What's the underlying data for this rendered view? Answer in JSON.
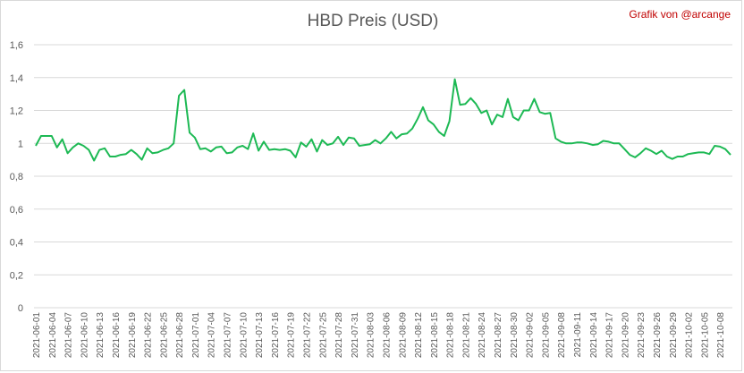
{
  "credit": "Grafik von @arcange",
  "chart_data": {
    "type": "line",
    "title": "HBD Preis (USD)",
    "xlabel": "",
    "ylabel": "",
    "ylim": [
      0,
      1.6
    ],
    "y_ticks": [
      "0",
      "0,2",
      "0,4",
      "0,6",
      "0,8",
      "1",
      "1,2",
      "1,4",
      "1,6"
    ],
    "grid": true,
    "legend": "none",
    "line_color": "#1db954",
    "x_tick_labels": [
      "2021-06-01",
      "2021-06-04",
      "2021-06-07",
      "2021-06-10",
      "2021-06-13",
      "2021-06-16",
      "2021-06-19",
      "2021-06-22",
      "2021-06-25",
      "2021-06-28",
      "2021-07-01",
      "2021-07-04",
      "2021-07-07",
      "2021-07-10",
      "2021-07-13",
      "2021-07-16",
      "2021-07-19",
      "2021-07-22",
      "2021-07-25",
      "2021-07-28",
      "2021-07-31",
      "2021-08-03",
      "2021-08-06",
      "2021-08-09",
      "2021-08-12",
      "2021-08-15",
      "2021-08-18",
      "2021-08-21",
      "2021-08-24",
      "2021-08-27",
      "2021-08-30",
      "2021-09-02",
      "2021-09-05",
      "2021-09-08",
      "2021-09-11",
      "2021-09-14",
      "2021-09-17",
      "2021-09-20",
      "2021-09-23",
      "2021-09-26",
      "2021-09-29",
      "2021-10-02",
      "2021-10-05",
      "2021-10-08"
    ],
    "start_date": "2021-06-01",
    "series": [
      {
        "values": [
          0.985,
          1.045,
          1.045,
          1.045,
          0.975,
          1.025,
          0.94,
          0.975,
          1.0,
          0.985,
          0.96,
          0.895,
          0.96,
          0.97,
          0.92,
          0.92,
          0.93,
          0.935,
          0.96,
          0.935,
          0.9,
          0.97,
          0.94,
          0.945,
          0.96,
          0.97,
          1.0,
          1.29,
          1.325,
          1.065,
          1.035,
          0.965,
          0.97,
          0.95,
          0.975,
          0.98,
          0.94,
          0.945,
          0.975,
          0.985,
          0.965,
          1.06,
          0.955,
          1.01,
          0.96,
          0.965,
          0.96,
          0.965,
          0.955,
          0.915,
          1.005,
          0.98,
          1.025,
          0.95,
          1.02,
          0.99,
          1.0,
          1.04,
          0.99,
          1.035,
          1.03,
          0.985,
          0.99,
          0.995,
          1.02,
          1.0,
          1.03,
          1.07,
          1.03,
          1.055,
          1.06,
          1.09,
          1.15,
          1.22,
          1.14,
          1.115,
          1.07,
          1.045,
          1.135,
          1.39,
          1.235,
          1.24,
          1.275,
          1.24,
          1.185,
          1.2,
          1.115,
          1.175,
          1.16,
          1.27,
          1.16,
          1.14,
          1.2,
          1.2,
          1.27,
          1.19,
          1.18,
          1.185,
          1.03,
          1.01,
          1.0,
          1.0,
          1.005,
          1.005,
          1.0,
          0.99,
          0.995,
          1.015,
          1.01,
          1.0,
          1.0,
          0.965,
          0.93,
          0.915,
          0.94,
          0.97,
          0.955,
          0.935,
          0.955,
          0.92,
          0.905,
          0.92,
          0.92,
          0.935,
          0.94,
          0.945,
          0.945,
          0.935,
          0.985,
          0.98,
          0.965,
          0.93
        ]
      }
    ]
  }
}
